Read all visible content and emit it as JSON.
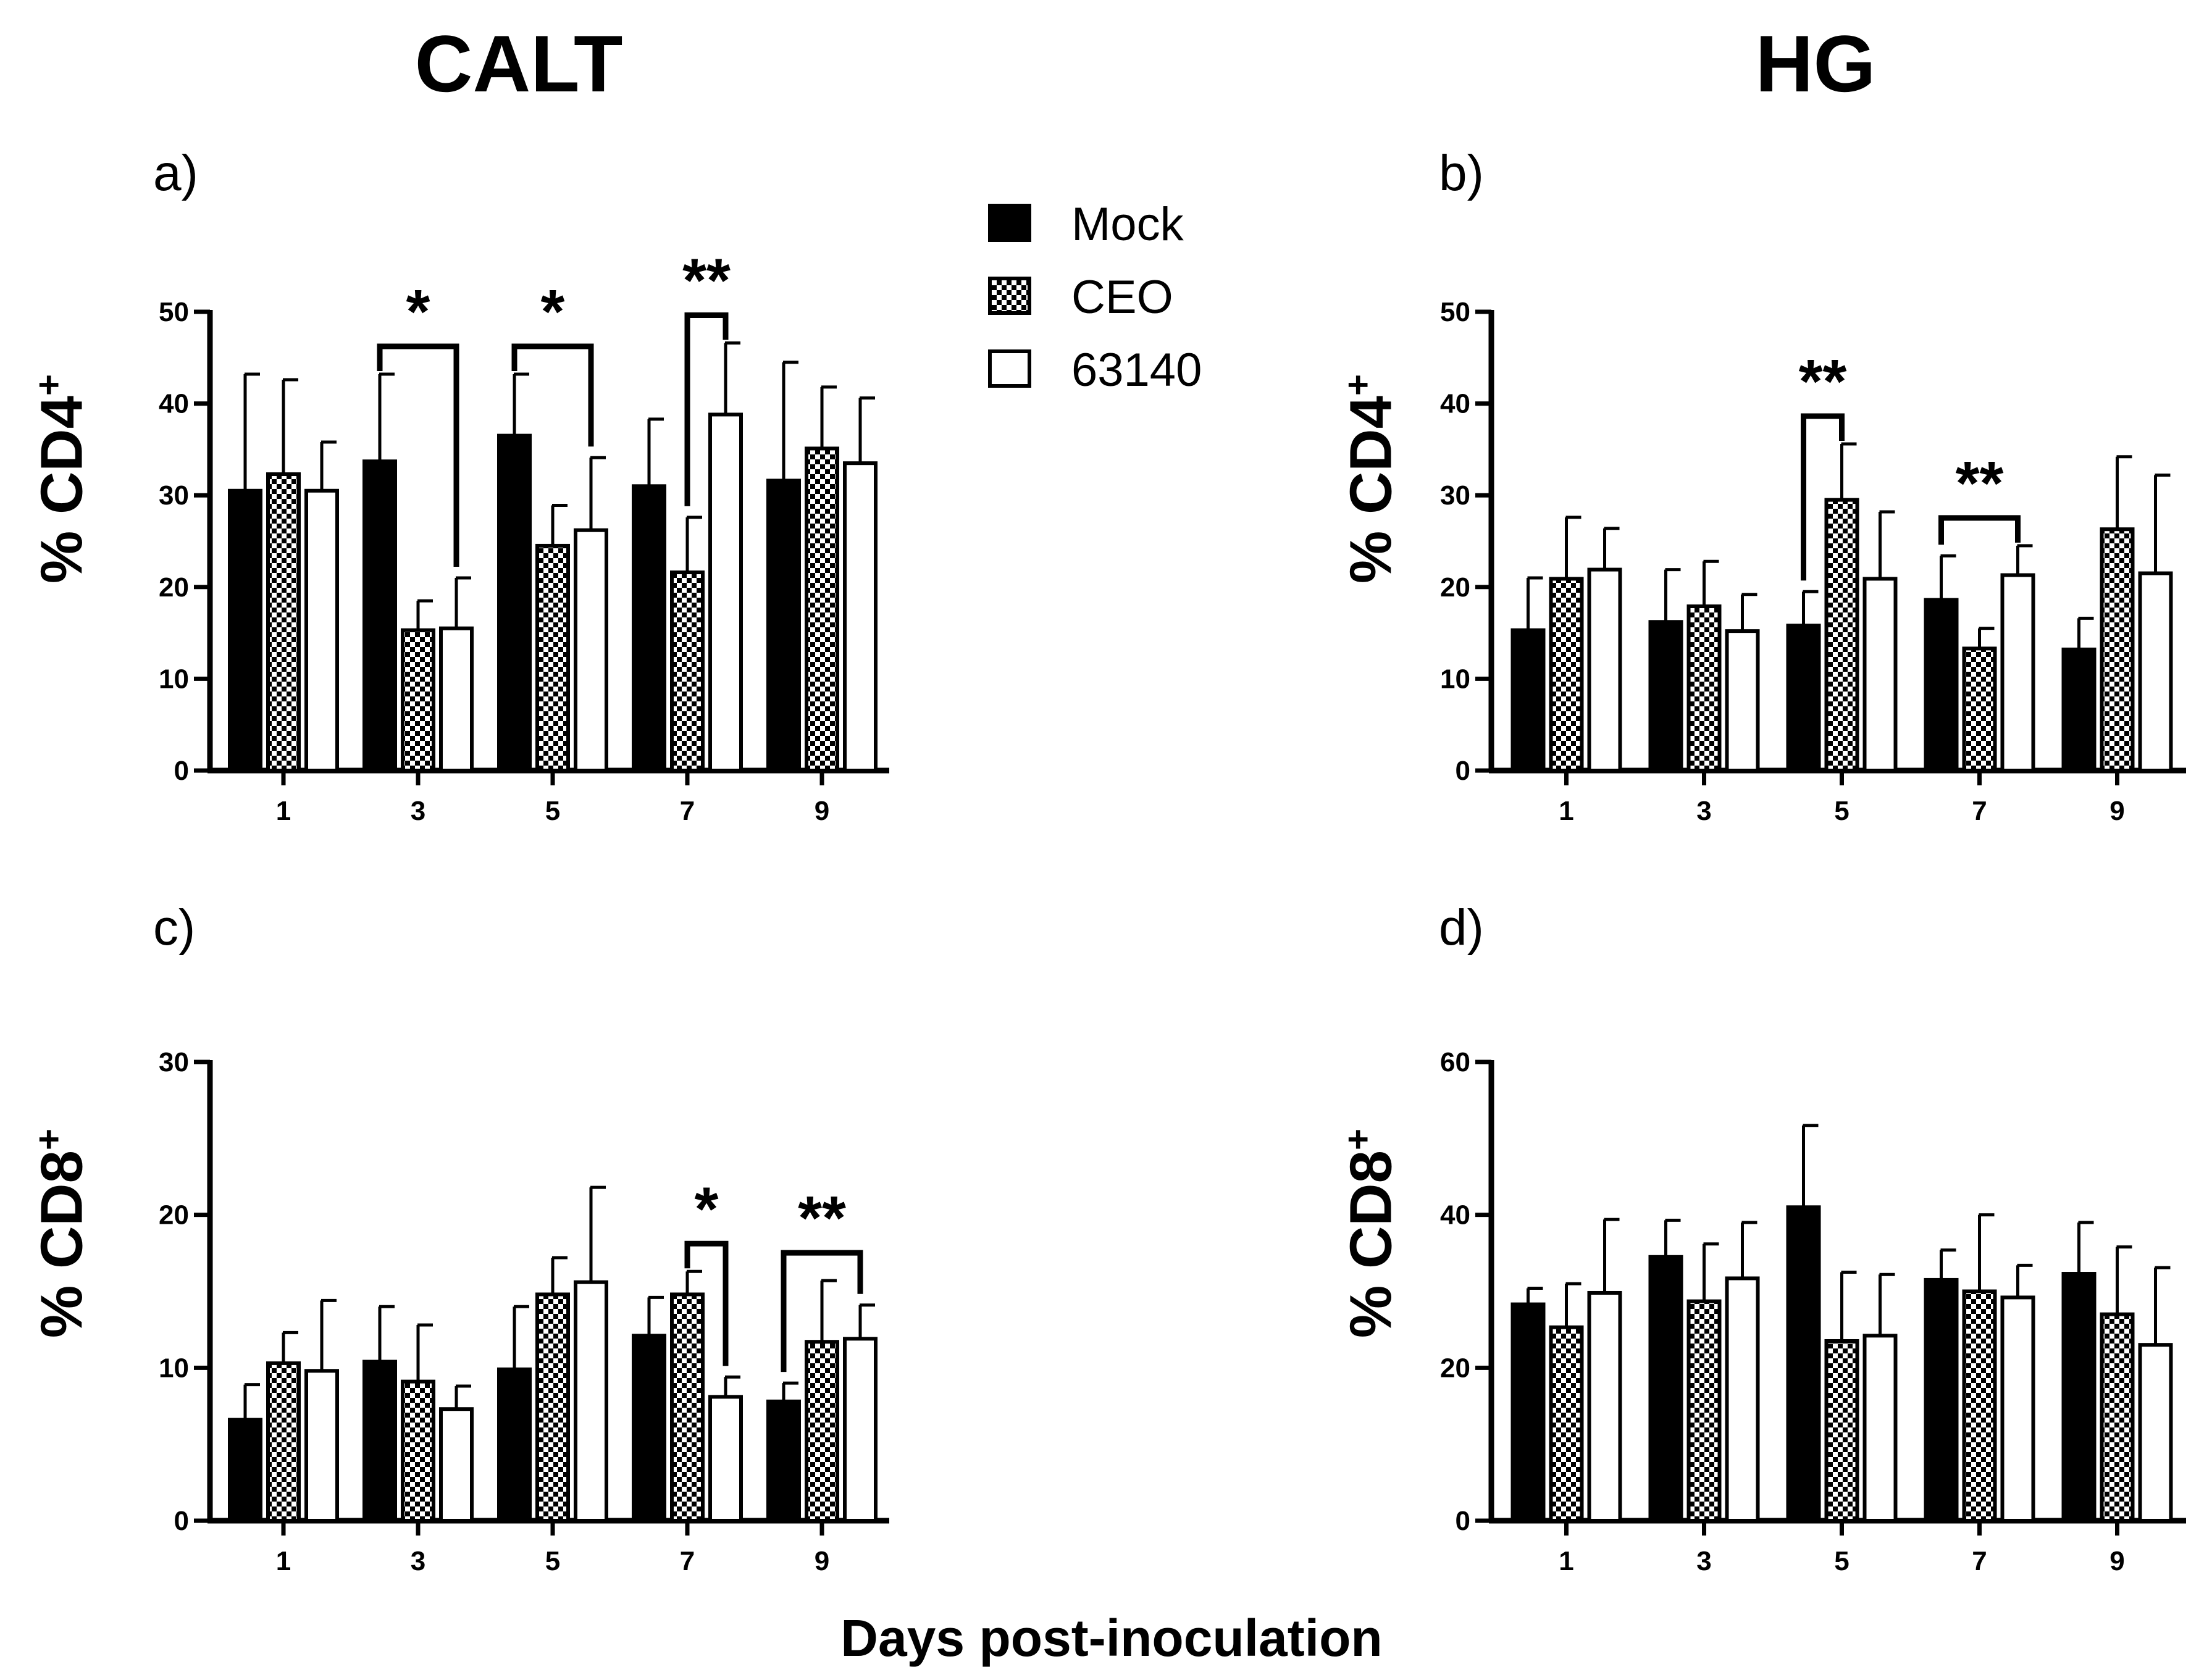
{
  "headers": {
    "left": "CALT",
    "right": "HG"
  },
  "x_axis_title": "Days post-inoculation",
  "legend": [
    {
      "label": "Mock",
      "style": "solid"
    },
    {
      "label": "CEO",
      "style": "checker"
    },
    {
      "label": "63140",
      "style": "open"
    }
  ],
  "colors": {
    "ink": "#000000",
    "background": "#ffffff"
  },
  "chart_data": [
    {
      "panel": "a)",
      "type": "bar",
      "ylabel": "% CD4",
      "ylabel_sup": "+",
      "ylim": [
        0,
        50
      ],
      "yticks": [
        0,
        10,
        20,
        30,
        40,
        50
      ],
      "categories": [
        "1",
        "3",
        "5",
        "7",
        "9"
      ],
      "series": [
        {
          "name": "Mock",
          "values": [
            30.5,
            33.7,
            36.5,
            31.0,
            31.6
          ],
          "errors": [
            12.7,
            9.5,
            6.7,
            7.3,
            12.9
          ]
        },
        {
          "name": "CEO",
          "values": [
            32.3,
            15.3,
            24.5,
            21.6,
            35.1
          ],
          "errors": [
            10.3,
            3.2,
            4.4,
            6.0,
            6.7
          ]
        },
        {
          "name": "63140",
          "values": [
            30.5,
            15.5,
            26.2,
            38.8,
            33.5
          ],
          "errors": [
            5.3,
            5.5,
            7.9,
            7.8,
            7.1
          ]
        }
      ],
      "significance": [
        {
          "category": 1,
          "from": 0,
          "to": 2,
          "label": "*"
        },
        {
          "category": 2,
          "from": 0,
          "to": 2,
          "label": "*"
        },
        {
          "category": 3,
          "from": 1,
          "to": 2,
          "label": "**"
        }
      ]
    },
    {
      "panel": "b)",
      "type": "bar",
      "ylabel": "% CD4",
      "ylabel_sup": "+",
      "ylim": [
        0,
        50
      ],
      "yticks": [
        0,
        10,
        20,
        30,
        40,
        50
      ],
      "categories": [
        "1",
        "3",
        "5",
        "7",
        "9"
      ],
      "series": [
        {
          "name": "Mock",
          "values": [
            15.3,
            16.2,
            15.8,
            18.6,
            13.2
          ],
          "errors": [
            5.7,
            5.7,
            3.7,
            4.8,
            3.4
          ]
        },
        {
          "name": "CEO",
          "values": [
            20.9,
            17.9,
            29.5,
            13.3,
            26.3
          ],
          "errors": [
            6.7,
            4.9,
            6.1,
            2.2,
            7.9
          ]
        },
        {
          "name": "63140",
          "values": [
            21.9,
            15.2,
            20.9,
            21.3,
            21.5
          ],
          "errors": [
            4.5,
            4.0,
            7.3,
            3.2,
            10.7
          ]
        }
      ],
      "significance": [
        {
          "category": 2,
          "from": 0,
          "to": 1,
          "label": "**"
        },
        {
          "category": 3,
          "from": 0,
          "to": 2,
          "label": "**"
        }
      ]
    },
    {
      "panel": "c)",
      "type": "bar",
      "ylabel": "% CD8",
      "ylabel_sup": "+",
      "ylim": [
        0,
        30
      ],
      "yticks": [
        0,
        10,
        20,
        30
      ],
      "categories": [
        "1",
        "3",
        "5",
        "7",
        "9"
      ],
      "series": [
        {
          "name": "Mock",
          "values": [
            6.6,
            10.4,
            9.9,
            12.1,
            7.8
          ],
          "errors": [
            2.3,
            3.6,
            4.1,
            2.5,
            1.2
          ]
        },
        {
          "name": "CEO",
          "values": [
            10.3,
            9.1,
            14.8,
            14.8,
            11.7
          ],
          "errors": [
            2.0,
            3.7,
            2.4,
            1.5,
            4.0
          ]
        },
        {
          "name": "63140",
          "values": [
            9.8,
            7.3,
            15.6,
            8.1,
            11.9
          ],
          "errors": [
            4.6,
            1.5,
            6.2,
            1.3,
            2.2
          ]
        }
      ],
      "significance": [
        {
          "category": 3,
          "from": 1,
          "to": 2,
          "label": "*"
        },
        {
          "category": 4,
          "from": 0,
          "to": 2,
          "label": "**"
        }
      ]
    },
    {
      "panel": "d)",
      "type": "bar",
      "ylabel": "% CD8",
      "ylabel_sup": "+",
      "ylim": [
        0,
        60
      ],
      "yticks": [
        0,
        20,
        40,
        60
      ],
      "categories": [
        "1",
        "3",
        "5",
        "7",
        "9"
      ],
      "series": [
        {
          "name": "Mock",
          "values": [
            28.3,
            34.5,
            41.0,
            31.5,
            32.3
          ],
          "errors": [
            2.1,
            4.8,
            10.7,
            3.9,
            6.7
          ]
        },
        {
          "name": "CEO",
          "values": [
            25.3,
            28.7,
            23.5,
            30.0,
            27.0
          ],
          "errors": [
            5.7,
            7.5,
            9.0,
            10.0,
            8.8
          ]
        },
        {
          "name": "63140",
          "values": [
            29.8,
            31.7,
            24.2,
            29.2,
            23.0
          ],
          "errors": [
            9.6,
            7.3,
            8.0,
            4.2,
            10.1
          ]
        }
      ],
      "significance": []
    }
  ]
}
